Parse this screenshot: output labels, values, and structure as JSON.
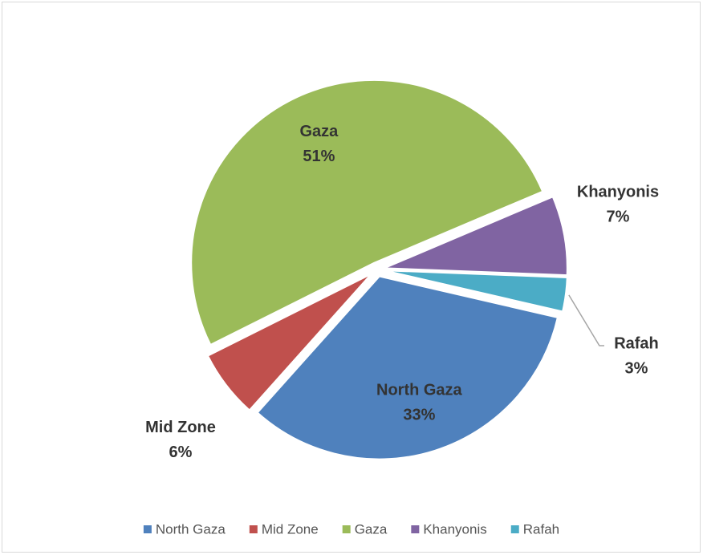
{
  "chart_data": {
    "type": "pie",
    "categories": [
      "North Gaza",
      "Mid Zone",
      "Gaza",
      "Khanyonis",
      "Rafah"
    ],
    "values": [
      33,
      6,
      51,
      7,
      3
    ],
    "value_labels": [
      "33%",
      "6%",
      "51%",
      "7%",
      "3%"
    ],
    "colors": [
      "#4f81bd",
      "#c0504d",
      "#9bbb59",
      "#8064a2",
      "#4bacc6"
    ],
    "legend": "bottom"
  }
}
